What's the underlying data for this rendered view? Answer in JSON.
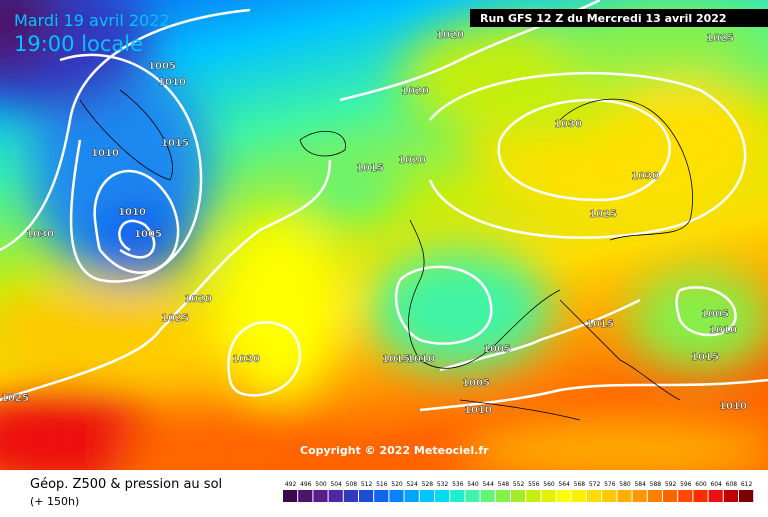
{
  "header": {
    "date": "Mardi 19 avril 2022",
    "time": "19:00 locale",
    "run": "Run GFS 12 Z du Mercredi 13 avril 2022"
  },
  "isobars": [
    "1020",
    "1025",
    "1005",
    "1010",
    "1020",
    "1030",
    "1010",
    "1015",
    "1015",
    "1020",
    "1030",
    "1010",
    "1025",
    "1005",
    "1030",
    "1020",
    "1025",
    "1015",
    "1005",
    "1010",
    "1005",
    "1015",
    "1030",
    "1015",
    "1010",
    "1005",
    "1025",
    "1010",
    "1010"
  ],
  "copyright": "Copyright © 2022 Meteociel.fr",
  "footer": {
    "title": "Géop. Z500 & pression au sol",
    "lead": "(+ 150h)"
  },
  "legend": {
    "values": [
      492,
      496,
      500,
      504,
      508,
      512,
      516,
      520,
      524,
      528,
      532,
      536,
      540,
      544,
      548,
      552,
      556,
      560,
      564,
      568,
      572,
      576,
      580,
      584,
      588,
      592,
      596,
      600,
      604,
      608,
      612
    ],
    "colors": [
      "#3c0a4c",
      "#4c146a",
      "#5c1c88",
      "#4a2aa4",
      "#3238c0",
      "#1e4ed8",
      "#1264ee",
      "#0a84fa",
      "#00a4ff",
      "#00c4ff",
      "#00dcf0",
      "#20ecd0",
      "#40f4a4",
      "#60f478",
      "#84f04c",
      "#a4ec28",
      "#c4ee0c",
      "#e4f400",
      "#ffff00",
      "#fff000",
      "#ffdc00",
      "#ffc800",
      "#ffb000",
      "#ff9800",
      "#ff8000",
      "#ff6400",
      "#ff4800",
      "#ff2c00",
      "#ec1010",
      "#c00000",
      "#7a0000"
    ]
  }
}
